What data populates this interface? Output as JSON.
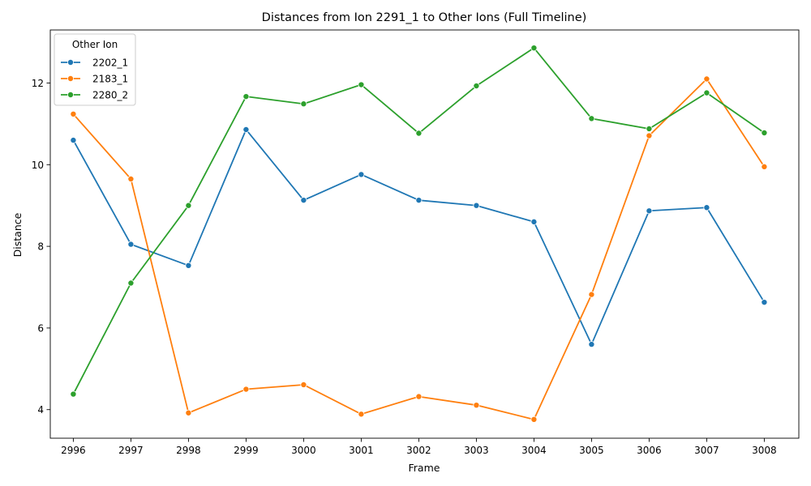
{
  "chart_data": {
    "type": "line",
    "title": "Distances from Ion 2291_1 to Other Ions (Full Timeline)",
    "xlabel": "Frame",
    "ylabel": "Distance",
    "x": [
      2996,
      2997,
      2998,
      2999,
      3000,
      3001,
      3002,
      3003,
      3004,
      3005,
      3006,
      3007,
      3008
    ],
    "xlim": [
      2995.6,
      3008.6
    ],
    "ylim": [
      3.3,
      13.3
    ],
    "yticks": [
      4,
      6,
      8,
      10,
      12
    ],
    "grid": false,
    "legend": {
      "title": "Other Ion",
      "placement": "top-left"
    },
    "series": [
      {
        "name": "2202_1",
        "color": "#1f77b4",
        "values": [
          10.6,
          8.05,
          7.53,
          10.86,
          9.13,
          9.76,
          9.13,
          9.0,
          8.6,
          5.6,
          8.87,
          8.95,
          6.63
        ]
      },
      {
        "name": "2183_1",
        "color": "#ff7f0e",
        "values": [
          11.24,
          9.65,
          3.92,
          4.5,
          4.61,
          3.89,
          4.32,
          4.11,
          3.76,
          6.82,
          10.71,
          12.1,
          9.95
        ]
      },
      {
        "name": "2280_2",
        "color": "#2ca02c",
        "values": [
          4.38,
          7.1,
          9.0,
          11.67,
          11.49,
          11.96,
          10.77,
          11.93,
          12.86,
          11.13,
          10.88,
          11.76,
          10.78
        ]
      }
    ]
  }
}
